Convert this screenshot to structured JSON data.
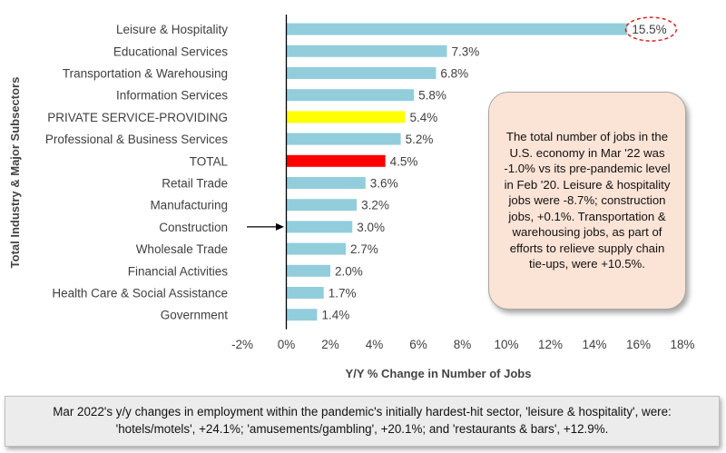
{
  "chart_data": {
    "type": "bar",
    "orientation": "horizontal",
    "categories": [
      "Leisure & Hospitality",
      "Educational Services",
      "Transportation & Warehousing",
      "Information Services",
      "PRIVATE SERVICE-PROVIDING",
      "Professional & Business Services",
      "TOTAL",
      "Retail Trade",
      "Manufacturing",
      "Construction",
      "Wholesale Trade",
      "Financial Activities",
      "Health Care & Social Assistance",
      "Government"
    ],
    "values": [
      15.5,
      7.3,
      6.8,
      5.8,
      5.4,
      5.2,
      4.5,
      3.6,
      3.2,
      3.0,
      2.7,
      2.0,
      1.7,
      1.4
    ],
    "value_labels": [
      "15.5%",
      "7.3%",
      "6.8%",
      "5.8%",
      "5.4%",
      "5.2%",
      "4.5%",
      "3.6%",
      "3.2%",
      "3.0%",
      "2.7%",
      "2.0%",
      "1.7%",
      "1.4%"
    ],
    "bar_colors": [
      "#92cddc",
      "#92cddc",
      "#92cddc",
      "#92cddc",
      "#ffff00",
      "#92cddc",
      "#ff0000",
      "#92cddc",
      "#92cddc",
      "#92cddc",
      "#92cddc",
      "#92cddc",
      "#92cddc",
      "#92cddc"
    ],
    "xlim": [
      -2,
      18
    ],
    "x_ticks": [
      -2,
      0,
      2,
      4,
      6,
      8,
      10,
      12,
      14,
      16,
      18
    ],
    "x_tick_labels": [
      "-2%",
      "0%",
      "2%",
      "4%",
      "6%",
      "8%",
      "10%",
      "12%",
      "14%",
      "16%",
      "18%"
    ],
    "xlabel": "Y/Y % Change in Number of Jobs",
    "ylabel": "Total Industry & Major Subsectors",
    "grid": false,
    "highlighted_label": "15.5%",
    "arrow_target": "Construction"
  },
  "callout": {
    "text": "The total number of jobs in the U.S. economy in Mar '22 was -1.0% vs its pre-pandemic level in Feb '20. Leisure & hospitality jobs were -8.7%; construction jobs, +0.1%. Transportation & warehousing jobs, as part of efforts to relieve supply chain tie-ups, were +10.5%."
  },
  "footnote": {
    "text": "Mar 2022's y/y changes in employment within the pandemic's initially hardest-hit sector, 'leisure & hospitality', were: 'hotels/motels', +24.1%; 'amusements/gambling', +20.1%; and 'restaurants & bars', +12.9%."
  }
}
